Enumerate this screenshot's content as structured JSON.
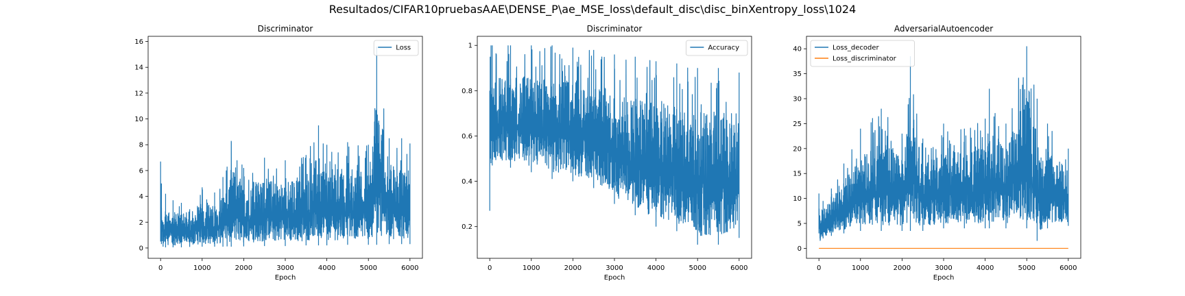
{
  "figure": {
    "suptitle": "Resultados/CIFAR10pruebasAAE\\DENSE_P\\ae_MSE_loss\\default_disc\\disc_binXentropy_loss\\1024"
  },
  "colors": {
    "blue": "#1f77b4",
    "orange": "#ff7f0e"
  },
  "chart_data": [
    {
      "type": "line",
      "title": "Discriminator",
      "xlabel": "Epoch",
      "ylabel": "",
      "xlim": [
        -300,
        6300
      ],
      "ylim": [
        -0.8,
        16.4
      ],
      "xticks": [
        0,
        1000,
        2000,
        3000,
        4000,
        5000,
        6000
      ],
      "yticks": [
        0,
        2,
        4,
        6,
        8,
        10,
        12,
        14,
        16
      ],
      "legend": "top-right",
      "series": [
        {
          "name": "Loss",
          "color": "#1f77b4",
          "x": [
            0,
            20,
            60,
            120,
            300,
            500,
            700,
            1000,
            1300,
            1500,
            1600,
            1700,
            2000,
            2500,
            3000,
            3500,
            3800,
            4000,
            4500,
            5000,
            5200,
            5500,
            5800,
            6000
          ],
          "y_low": [
            0.5,
            0.3,
            0.1,
            0.05,
            0.05,
            0.05,
            0.08,
            0.1,
            0.1,
            0.1,
            0.12,
            0.1,
            0.12,
            0.15,
            0.15,
            0.2,
            0.2,
            0.2,
            0.25,
            0.25,
            0.25,
            0.3,
            0.3,
            0.3
          ],
          "y_high": [
            6.7,
            5.0,
            2.0,
            4.2,
            3.7,
            3.5,
            3.0,
            4.7,
            4.3,
            5.5,
            6.3,
            8.3,
            6.2,
            7.0,
            6.8,
            7.2,
            9.5,
            8.0,
            8.2,
            8.0,
            15.6,
            8.5,
            8.5,
            8.1
          ]
        }
      ]
    },
    {
      "type": "line",
      "title": "Discriminator",
      "xlabel": "Epoch",
      "ylabel": "",
      "xlim": [
        -300,
        6300
      ],
      "ylim": [
        0.06,
        1.04
      ],
      "xticks": [
        0,
        1000,
        2000,
        3000,
        4000,
        5000,
        6000
      ],
      "yticks": [
        0.2,
        0.4,
        0.6,
        0.8,
        1.0
      ],
      "legend": "top-right",
      "series": [
        {
          "name": "Accuracy",
          "color": "#1f77b4",
          "x": [
            0,
            10,
            30,
            60,
            500,
            1000,
            1500,
            2000,
            2500,
            3000,
            3500,
            4000,
            4500,
            5000,
            5500,
            6000
          ],
          "y_low": [
            0.27,
            0.5,
            0.48,
            0.47,
            0.46,
            0.44,
            0.41,
            0.4,
            0.37,
            0.3,
            0.25,
            0.2,
            0.18,
            0.12,
            0.12,
            0.15
          ],
          "y_high": [
            0.8,
            0.95,
            1.0,
            1.0,
            1.0,
            1.0,
            1.0,
            0.99,
            0.98,
            0.96,
            0.95,
            0.93,
            0.92,
            0.9,
            0.9,
            0.88
          ]
        }
      ]
    },
    {
      "type": "line",
      "title": "AdversarialAutoencoder",
      "xlabel": "Epoch",
      "ylabel": "",
      "xlim": [
        -300,
        6300
      ],
      "ylim": [
        -2.0,
        42.5
      ],
      "xticks": [
        0,
        1000,
        2000,
        3000,
        4000,
        5000,
        6000
      ],
      "yticks": [
        0,
        5,
        10,
        15,
        20,
        25,
        30,
        35,
        40
      ],
      "legend": "top-left",
      "series": [
        {
          "name": "Loss_decoder",
          "color": "#1f77b4",
          "x": [
            0,
            30,
            100,
            300,
            600,
            1000,
            1500,
            2000,
            2200,
            2500,
            3000,
            3500,
            4000,
            4100,
            4500,
            5000,
            5250,
            5500,
            6000
          ],
          "y_low": [
            3.0,
            1.5,
            2.0,
            2.5,
            3.0,
            3.5,
            3.5,
            3.5,
            3.5,
            3.5,
            4.0,
            4.0,
            4.0,
            4.0,
            4.0,
            4.0,
            1.5,
            4.0,
            4.5
          ],
          "y_high": [
            11.0,
            5.0,
            9.5,
            12.0,
            17.0,
            24.0,
            28.0,
            23.0,
            38.5,
            22.0,
            25.0,
            24.0,
            26.0,
            32.0,
            25.0,
            40.5,
            30.0,
            25.0,
            20.0
          ]
        },
        {
          "name": "Loss_discriminator",
          "color": "#ff7f0e",
          "x": [
            0,
            6000
          ],
          "y": [
            0.0,
            0.0
          ]
        }
      ]
    }
  ]
}
